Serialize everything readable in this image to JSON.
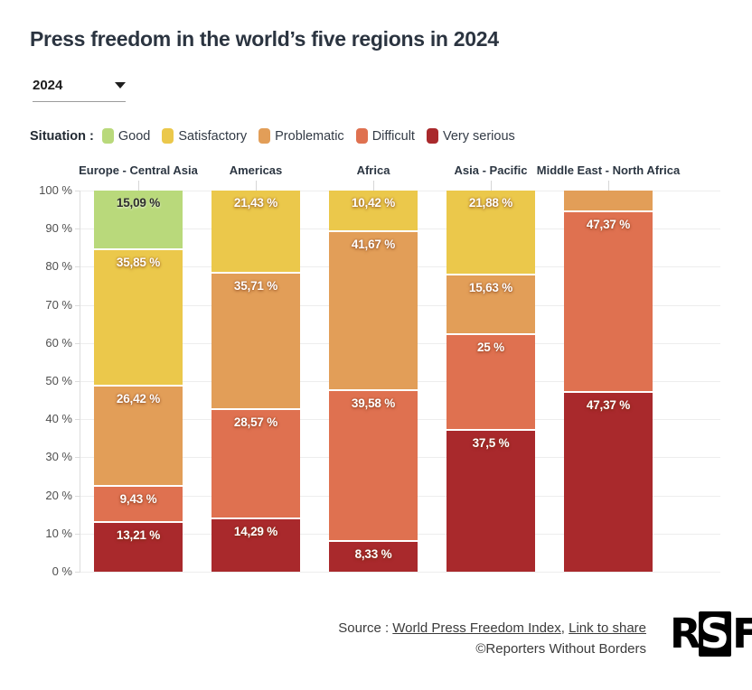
{
  "header": {
    "title": "Press freedom in the world’s five regions in 2024"
  },
  "controls": {
    "year_selected": "2024",
    "dropdown_icon": "chevron-down"
  },
  "legend": {
    "title": "Situation :",
    "items": [
      {
        "label": "Good",
        "color": "#b9d97b"
      },
      {
        "label": "Satisfactory",
        "color": "#ebc84b"
      },
      {
        "label": "Problematic",
        "color": "#e29e58"
      },
      {
        "label": "Difficult",
        "color": "#df7150"
      },
      {
        "label": "Very serious",
        "color": "#a9292c"
      }
    ]
  },
  "chart_data": {
    "type": "bar",
    "stacked": true,
    "title": "Press freedom in the world’s five regions in 2024",
    "unit": "%",
    "ylim": [
      0,
      100
    ],
    "ytick_step": 10,
    "grid": true,
    "legend_position": "top",
    "ytick_labels": [
      "0 %",
      "10 %",
      "20 %",
      "30 %",
      "40 %",
      "50 %",
      "60 %",
      "70 %",
      "80 %",
      "90 %",
      "100 %"
    ],
    "categories": [
      "Europe - Central Asia",
      "Americas",
      "Africa",
      "Asia - Pacific",
      "Middle East - North Africa"
    ],
    "series": [
      {
        "name": "Good",
        "color": "#b9d97b",
        "label_color": "#2d2d2d",
        "values": [
          15.09,
          0,
          0,
          0,
          0
        ],
        "labels": [
          "15,09 %",
          "",
          "",
          "",
          ""
        ]
      },
      {
        "name": "Satisfactory",
        "color": "#ebc84b",
        "label_color": "#ffffff",
        "values": [
          35.85,
          21.43,
          10.42,
          21.88,
          0
        ],
        "labels": [
          "35,85 %",
          "21,43 %",
          "10,42 %",
          "21,88 %",
          ""
        ]
      },
      {
        "name": "Problematic",
        "color": "#e29e58",
        "label_color": "#ffffff",
        "values": [
          26.42,
          35.71,
          41.67,
          15.63,
          5.26
        ],
        "labels": [
          "26,42 %",
          "35,71 %",
          "41,67 %",
          "15,63 %",
          ""
        ]
      },
      {
        "name": "Difficult",
        "color": "#df7150",
        "label_color": "#ffffff",
        "values": [
          9.43,
          28.57,
          39.58,
          25,
          47.37
        ],
        "labels": [
          "9,43 %",
          "28,57 %",
          "39,58 %",
          "25 %",
          "47,37 %"
        ]
      },
      {
        "name": "Very serious",
        "color": "#a9292c",
        "label_color": "#ffffff",
        "values": [
          13.21,
          14.29,
          8.33,
          37.5,
          47.37
        ],
        "labels": [
          "13,21 %",
          "14,29 %",
          "8,33 %",
          "37,5 %",
          "47,37 %"
        ]
      }
    ]
  },
  "footer": {
    "source_prefix": "Source : ",
    "source_link": "World Press Freedom Index",
    "separator": ", ",
    "share_link": "Link to share",
    "copyright": "©Reporters Without Borders",
    "logo_letters": [
      "R",
      "S",
      "F"
    ]
  }
}
